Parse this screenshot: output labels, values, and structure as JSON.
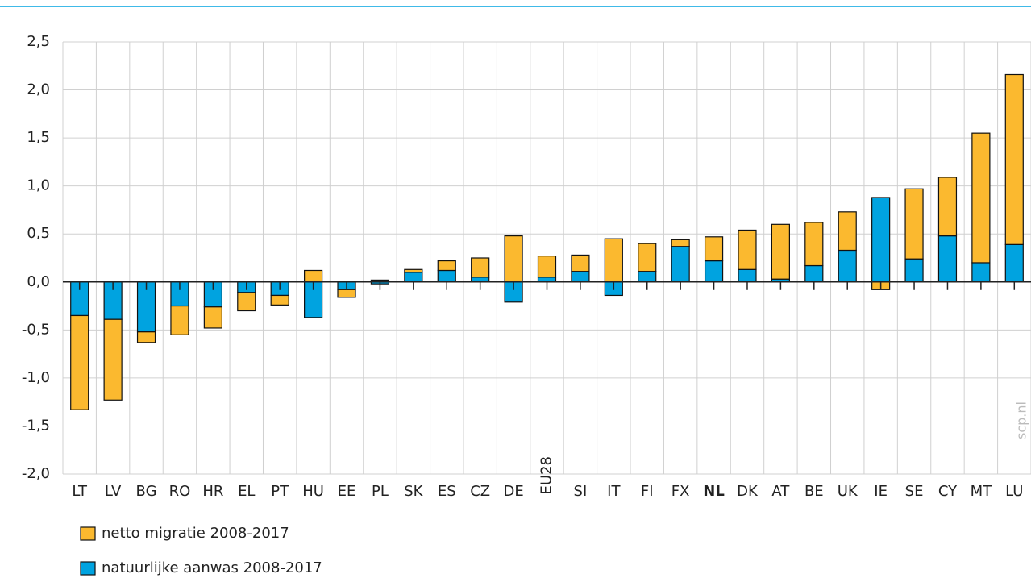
{
  "chart_data": {
    "type": "stacked_bar",
    "categories": [
      "LT",
      "LV",
      "BG",
      "RO",
      "HR",
      "EL",
      "PT",
      "HU",
      "EE",
      "PL",
      "SK",
      "ES",
      "CZ",
      "DE",
      "EU28",
      "SI",
      "IT",
      "FI",
      "FX",
      "NL",
      "DK",
      "AT",
      "BE",
      "UK",
      "IE",
      "SE",
      "CY",
      "MT",
      "LU"
    ],
    "highlight": "NL",
    "series": [
      {
        "name": "netto migratie 2008-2017",
        "color": "#fbb92f",
        "values": [
          -0.98,
          -0.84,
          -0.11,
          -0.3,
          -0.22,
          -0.19,
          -0.1,
          0.12,
          -0.08,
          0.02,
          0.03,
          0.1,
          0.2,
          0.48,
          0.22,
          0.17,
          0.45,
          0.29,
          0.07,
          0.25,
          0.41,
          0.57,
          0.45,
          0.4,
          -0.08,
          0.73,
          0.61,
          1.35,
          1.77
        ]
      },
      {
        "name": "natuurlijke aanwas 2008-2017",
        "color": "#00a3e0",
        "values": [
          -0.35,
          -0.39,
          -0.52,
          -0.25,
          -0.26,
          -0.11,
          -0.14,
          -0.37,
          -0.08,
          -0.02,
          0.1,
          0.12,
          0.05,
          -0.21,
          0.05,
          0.11,
          -0.14,
          0.11,
          0.37,
          0.22,
          0.13,
          0.03,
          0.17,
          0.33,
          0.88,
          0.24,
          0.48,
          0.2,
          0.39
        ]
      }
    ],
    "ylim": [
      -2.0,
      2.5
    ],
    "yticks": [
      {
        "value": -2.0,
        "label": "-2,0"
      },
      {
        "value": -1.5,
        "label": "-1,5"
      },
      {
        "value": -1.0,
        "label": "-1,0"
      },
      {
        "value": -0.5,
        "label": "-0,5"
      },
      {
        "value": 0,
        "label": "0,0"
      },
      {
        "value": 0.5,
        "label": "0,5"
      },
      {
        "value": 1.0,
        "label": "1,0"
      },
      {
        "value": 1.5,
        "label": "1,5"
      },
      {
        "value": 2.0,
        "label": "2,0"
      },
      {
        "value": 2.5,
        "label": "2,5"
      }
    ],
    "grid": true,
    "source": "scp.nl"
  }
}
